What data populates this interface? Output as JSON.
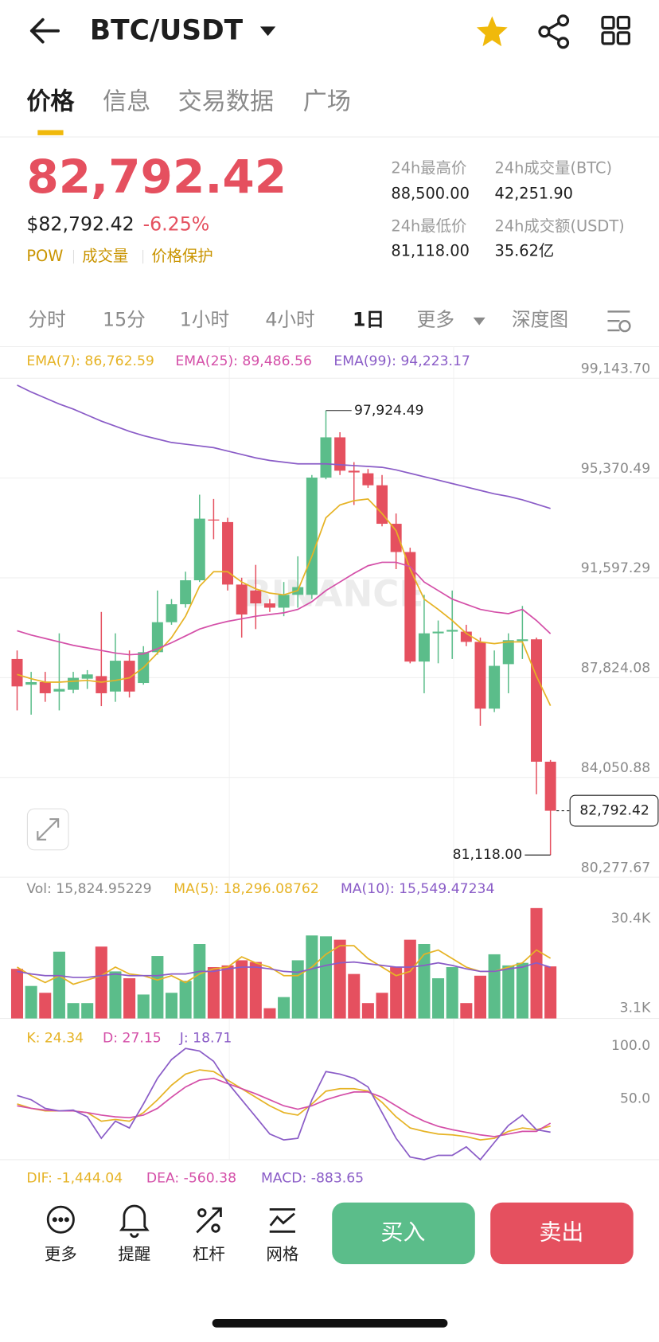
{
  "header": {
    "pair": "BTC/USDT"
  },
  "tabs": [
    "价格",
    "信息",
    "交易数据",
    "广场"
  ],
  "price": {
    "last": "82,792.42",
    "usd": "$82,792.42",
    "change": "-6.25%",
    "tags": [
      "POW",
      "成交量",
      "价格保护"
    ]
  },
  "stats": [
    {
      "label": "24h最高价",
      "value": "88,500.00"
    },
    {
      "label": "24h成交量(BTC)",
      "value": "42,251.90"
    },
    {
      "label": "24h最低价",
      "value": "81,118.00"
    },
    {
      "label": "24h成交额(USDT)",
      "value": "35.62亿"
    }
  ],
  "intervals": [
    "分时",
    "15分",
    "1小时",
    "4小时",
    "1日",
    "更多",
    "深度图"
  ],
  "watermark": "BINANCE",
  "chart_data": [
    {
      "type": "candlestick",
      "up_color": "#5bbd8a",
      "down_color": "#e5505f",
      "grid": true,
      "ylim": [
        80277.67,
        99143.7
      ],
      "yticks": [
        {
          "value": 80277.67,
          "label": "80,277.67"
        },
        {
          "value": 84050.88,
          "label": "84,050.88"
        },
        {
          "value": 87824.08,
          "label": "87,824.08"
        },
        {
          "value": 91597.29,
          "label": "91,597.29"
        },
        {
          "value": 95370.49,
          "label": "95,370.49"
        },
        {
          "value": 99143.7,
          "label": "99,143.70"
        }
      ],
      "open": [
        88530,
        87559,
        87656,
        87300,
        87365,
        87786,
        87883,
        87300,
        88465,
        87624,
        88789,
        89921,
        90601,
        91507,
        93804,
        93707,
        91345,
        91119,
        90633,
        90471,
        90957,
        90957,
        95390,
        96911,
        95649,
        95552,
        95099,
        93643,
        92575,
        88433,
        89501,
        89565,
        89565,
        89177,
        86653,
        88336,
        89209,
        89274,
        84647
      ],
      "high": [
        88853,
        88044,
        88044,
        89501,
        88044,
        88109,
        90310,
        89501,
        88853,
        89015,
        91119,
        90795,
        91831,
        94743,
        94581,
        93869,
        91604,
        92089,
        90795,
        91442,
        92413,
        95487,
        97924.49,
        97105,
        95973,
        95714,
        95487,
        94031,
        92737,
        90957,
        89986,
        91119,
        89824,
        89339,
        88853,
        89501,
        90536,
        89339,
        84711
      ],
      "low": [
        86588,
        86426,
        86912,
        86588,
        87235,
        87397,
        86750,
        86912,
        87074,
        87559,
        88692,
        89824,
        90471,
        91442,
        93060,
        91119,
        89339,
        89662,
        90310,
        90148,
        90471,
        90795,
        95325,
        95487,
        94355,
        95002,
        93546,
        91928,
        88368,
        87235,
        88368,
        88530,
        89015,
        86006,
        86523,
        87235,
        88530,
        83417,
        81118
      ],
      "close": [
        87494,
        87656,
        87235,
        87397,
        87818,
        87947,
        87235,
        88465,
        87300,
        88789,
        89921,
        90601,
        91507,
        93837,
        93772,
        91345,
        90213,
        90633,
        90471,
        90957,
        91248,
        95390,
        96911,
        95649,
        95584,
        95099,
        93643,
        92575,
        88433,
        89501,
        89565,
        89630,
        89177,
        86653,
        88271,
        89242,
        89274,
        84647,
        82792.42
      ],
      "series": [
        {
          "name": "EMA(7): 86,762.59",
          "color": "#e6b325",
          "values": [
            87947,
            87786,
            87656,
            87656,
            87688,
            87721,
            87656,
            87721,
            87818,
            88206,
            88756,
            89339,
            90148,
            91280,
            91831,
            91831,
            91442,
            91183,
            91022,
            90957,
            91119,
            92413,
            93869,
            94355,
            94516,
            94581,
            94031,
            93384,
            91928,
            90795,
            90407,
            89986,
            89501,
            89177,
            89112,
            89177,
            89177,
            87883,
            86762.59
          ]
        },
        {
          "name": "EMA(25): 89,486.56",
          "color": "#d44fa8",
          "values": [
            89598,
            89436,
            89306,
            89177,
            89048,
            88950,
            88853,
            88756,
            88692,
            88724,
            88918,
            89145,
            89404,
            89662,
            89824,
            89954,
            90051,
            90148,
            90213,
            90277,
            90407,
            90698,
            91119,
            91442,
            91766,
            92057,
            92186,
            92186,
            92025,
            91442,
            91119,
            90795,
            90601,
            90407,
            90310,
            90245,
            90407,
            89986,
            89486.56
          ]
        },
        {
          "name": "EMA(99): 94,223.17",
          "color": "#8a5cc7",
          "values": [
            98885,
            98626,
            98400,
            98173,
            97979,
            97752,
            97526,
            97332,
            97138,
            96976,
            96846,
            96717,
            96652,
            96587,
            96523,
            96393,
            96264,
            96134,
            96037,
            95973,
            95908,
            95908,
            95908,
            95875,
            95843,
            95811,
            95778,
            95681,
            95552,
            95422,
            95293,
            95164,
            95034,
            94905,
            94775,
            94678,
            94549,
            94387,
            94223.17
          ]
        }
      ],
      "annotations": [
        {
          "value": 97924.49,
          "label": "97,924.49"
        },
        {
          "value": 81118,
          "label": "81,118.00"
        }
      ],
      "last_price": {
        "value": 82792.42,
        "label": "82,792.42"
      }
    },
    {
      "type": "bar",
      "grid": false,
      "ylim": [
        0,
        41600
      ],
      "yticks": [
        {
          "value": 3100,
          "label": "3.1K"
        },
        {
          "value": 30400,
          "label": "30.4K"
        }
      ],
      "series": [
        {
          "name": "Vol: 15,824.95229",
          "type": "bar",
          "color": "#888888",
          "values": [
            15080,
            9880,
            7800,
            20280,
            4680,
            4680,
            21840,
            14300,
            12220,
            7280,
            18980,
            7800,
            11440,
            22620,
            15600,
            16120,
            17680,
            17160,
            3120,
            6500,
            17680,
            25220,
            24960,
            23920,
            13520,
            4680,
            7800,
            15600,
            23920,
            22620,
            12220,
            15600,
            4680,
            13000,
            19500,
            16120,
            16900,
            33540,
            15824.95229
          ]
        },
        {
          "name": "MA(5): 18,296.08762",
          "type": "line",
          "color": "#e6b325",
          "values": [
            15600,
            13000,
            10920,
            13000,
            10400,
            11700,
            13000,
            15600,
            13520,
            13000,
            11700,
            13000,
            10920,
            13520,
            15080,
            15600,
            18720,
            16900,
            15600,
            13000,
            13000,
            15600,
            19500,
            22100,
            22100,
            18200,
            15600,
            13000,
            14300,
            19500,
            20800,
            18200,
            15600,
            14300,
            14300,
            15600,
            16900,
            20800,
            18296.08762
          ]
        },
        {
          "name": "MA(10): 15,549.47234",
          "type": "line",
          "color": "#8a5cc7",
          "values": [
            14300,
            13520,
            13000,
            13000,
            12480,
            12480,
            13000,
            13520,
            13000,
            13000,
            13000,
            13520,
            13520,
            14300,
            14300,
            15080,
            15600,
            15600,
            15080,
            14300,
            14040,
            15080,
            16120,
            16900,
            17160,
            16640,
            16120,
            15600,
            15600,
            16120,
            16900,
            16120,
            15080,
            14300,
            14300,
            15080,
            15600,
            16900,
            15549.47234
          ]
        }
      ]
    },
    {
      "type": "line",
      "grid": false,
      "ylim": [
        -7.3,
        121.8
      ],
      "yticks": [
        {
          "value": 50,
          "label": "50.0"
        },
        {
          "value": 100,
          "label": "100.0"
        }
      ],
      "series": [
        {
          "name": "K: 24.34",
          "color": "#e6b325",
          "values": [
            45.2,
            41.1,
            38.7,
            38.7,
            38.7,
            37.1,
            29.0,
            30.6,
            29.0,
            37.1,
            49.2,
            62.9,
            73.4,
            77.4,
            75.8,
            67.7,
            59.7,
            51.6,
            43.5,
            37.1,
            34.7,
            45.2,
            57.3,
            59.7,
            59.7,
            57.3,
            46.8,
            33.1,
            22.6,
            19.4,
            16.9,
            16.1,
            14.5,
            11.3,
            12.9,
            19.4,
            22.6,
            21.0,
            24.34
          ]
        },
        {
          "name": "D: 27.15",
          "color": "#d44fa8",
          "values": [
            43.5,
            41.1,
            39.5,
            38.7,
            38.7,
            37.1,
            34.7,
            33.1,
            32.3,
            34.7,
            41.1,
            51.6,
            61.3,
            67.7,
            69.4,
            64.5,
            59.7,
            54.8,
            49.2,
            43.5,
            40.3,
            43.5,
            49.2,
            53.2,
            56.5,
            56.5,
            51.6,
            43.5,
            35.5,
            29.0,
            24.2,
            21.0,
            18.5,
            16.1,
            14.5,
            16.9,
            19.4,
            19.4,
            27.15
          ]
        },
        {
          "name": "J: 18.71",
          "color": "#8a5cc7",
          "values": [
            53.2,
            49.2,
            41.1,
            38.7,
            39.5,
            33.1,
            12.9,
            29.0,
            22.6,
            45.2,
            69.4,
            87.1,
            97.6,
            95.2,
            85.5,
            65.3,
            49.2,
            33.1,
            16.9,
            11.3,
            12.9,
            49.2,
            75.8,
            73.4,
            69.4,
            61.3,
            37.1,
            12.9,
            -4.8,
            -7.3,
            -3.2,
            -3.2,
            4.8,
            -7.3,
            8.9,
            25.0,
            34.7,
            21.0,
            18.71
          ]
        }
      ]
    }
  ],
  "macd_labels": [
    "DIF: -1,444.04",
    "DEA: -560.38",
    "MACD: -883.65"
  ],
  "bottom_bar": {
    "actions": [
      "更多",
      "提醒",
      "杠杆",
      "网格"
    ],
    "buy": "买入",
    "sell": "卖出"
  }
}
